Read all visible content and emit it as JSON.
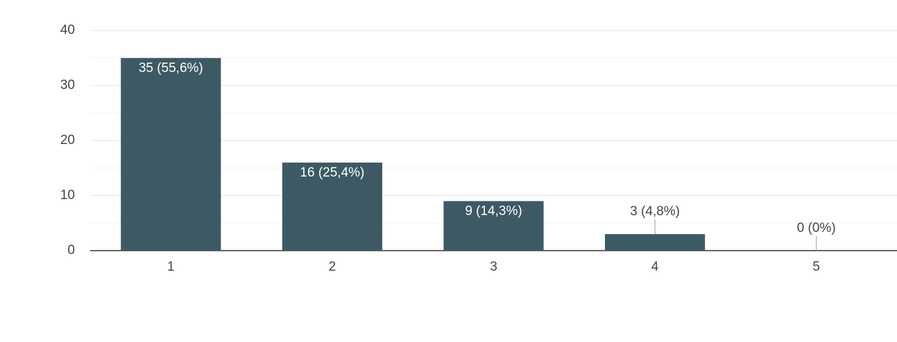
{
  "chart_data": {
    "type": "bar",
    "categories": [
      "1",
      "2",
      "3",
      "4",
      "5"
    ],
    "values": [
      35,
      16,
      9,
      3,
      0
    ],
    "value_labels": [
      "35 (55,6%)",
      "16 (25,4%)",
      "9 (14,3%)",
      "3 (4,8%)",
      "0 (0%)"
    ],
    "color": "#3d5a64",
    "ylim": [
      0,
      40
    ],
    "yticks": [
      0,
      10,
      20,
      30,
      40
    ],
    "minor_yticks": [
      5,
      15,
      25,
      35
    ],
    "grid": true
  }
}
